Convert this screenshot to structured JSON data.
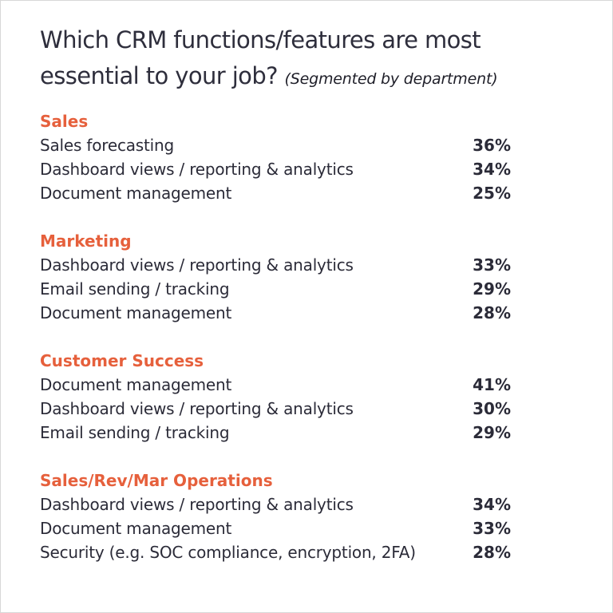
{
  "title": "Which CRM functions/features are most essential to your job?",
  "subtitle": "(Segmented by department)",
  "colors": {
    "accent": "#e6603c",
    "text": "#2b2b38"
  },
  "sections": [
    {
      "name": "Sales",
      "items": [
        {
          "label": "Sales forecasting",
          "value": "36%"
        },
        {
          "label": "Dashboard views / reporting & analytics",
          "value": "34%"
        },
        {
          "label": "Document management",
          "value": "25%"
        }
      ]
    },
    {
      "name": "Marketing",
      "items": [
        {
          "label": "Dashboard views / reporting & analytics",
          "value": "33%"
        },
        {
          "label": "Email sending / tracking",
          "value": "29%"
        },
        {
          "label": "Document management",
          "value": "28%"
        }
      ]
    },
    {
      "name": "Customer Success",
      "items": [
        {
          "label": "Document management",
          "value": "41%"
        },
        {
          "label": "Dashboard views / reporting & analytics",
          "value": "30%"
        },
        {
          "label": "Email sending / tracking",
          "value": "29%"
        }
      ]
    },
    {
      "name": "Sales/Rev/Mar Operations",
      "items": [
        {
          "label": "Dashboard views / reporting & analytics",
          "value": "34%"
        },
        {
          "label": "Document management",
          "value": "33%"
        },
        {
          "label": "Security (e.g. SOC compliance, encryption, 2FA)",
          "value": "28%"
        }
      ]
    }
  ]
}
